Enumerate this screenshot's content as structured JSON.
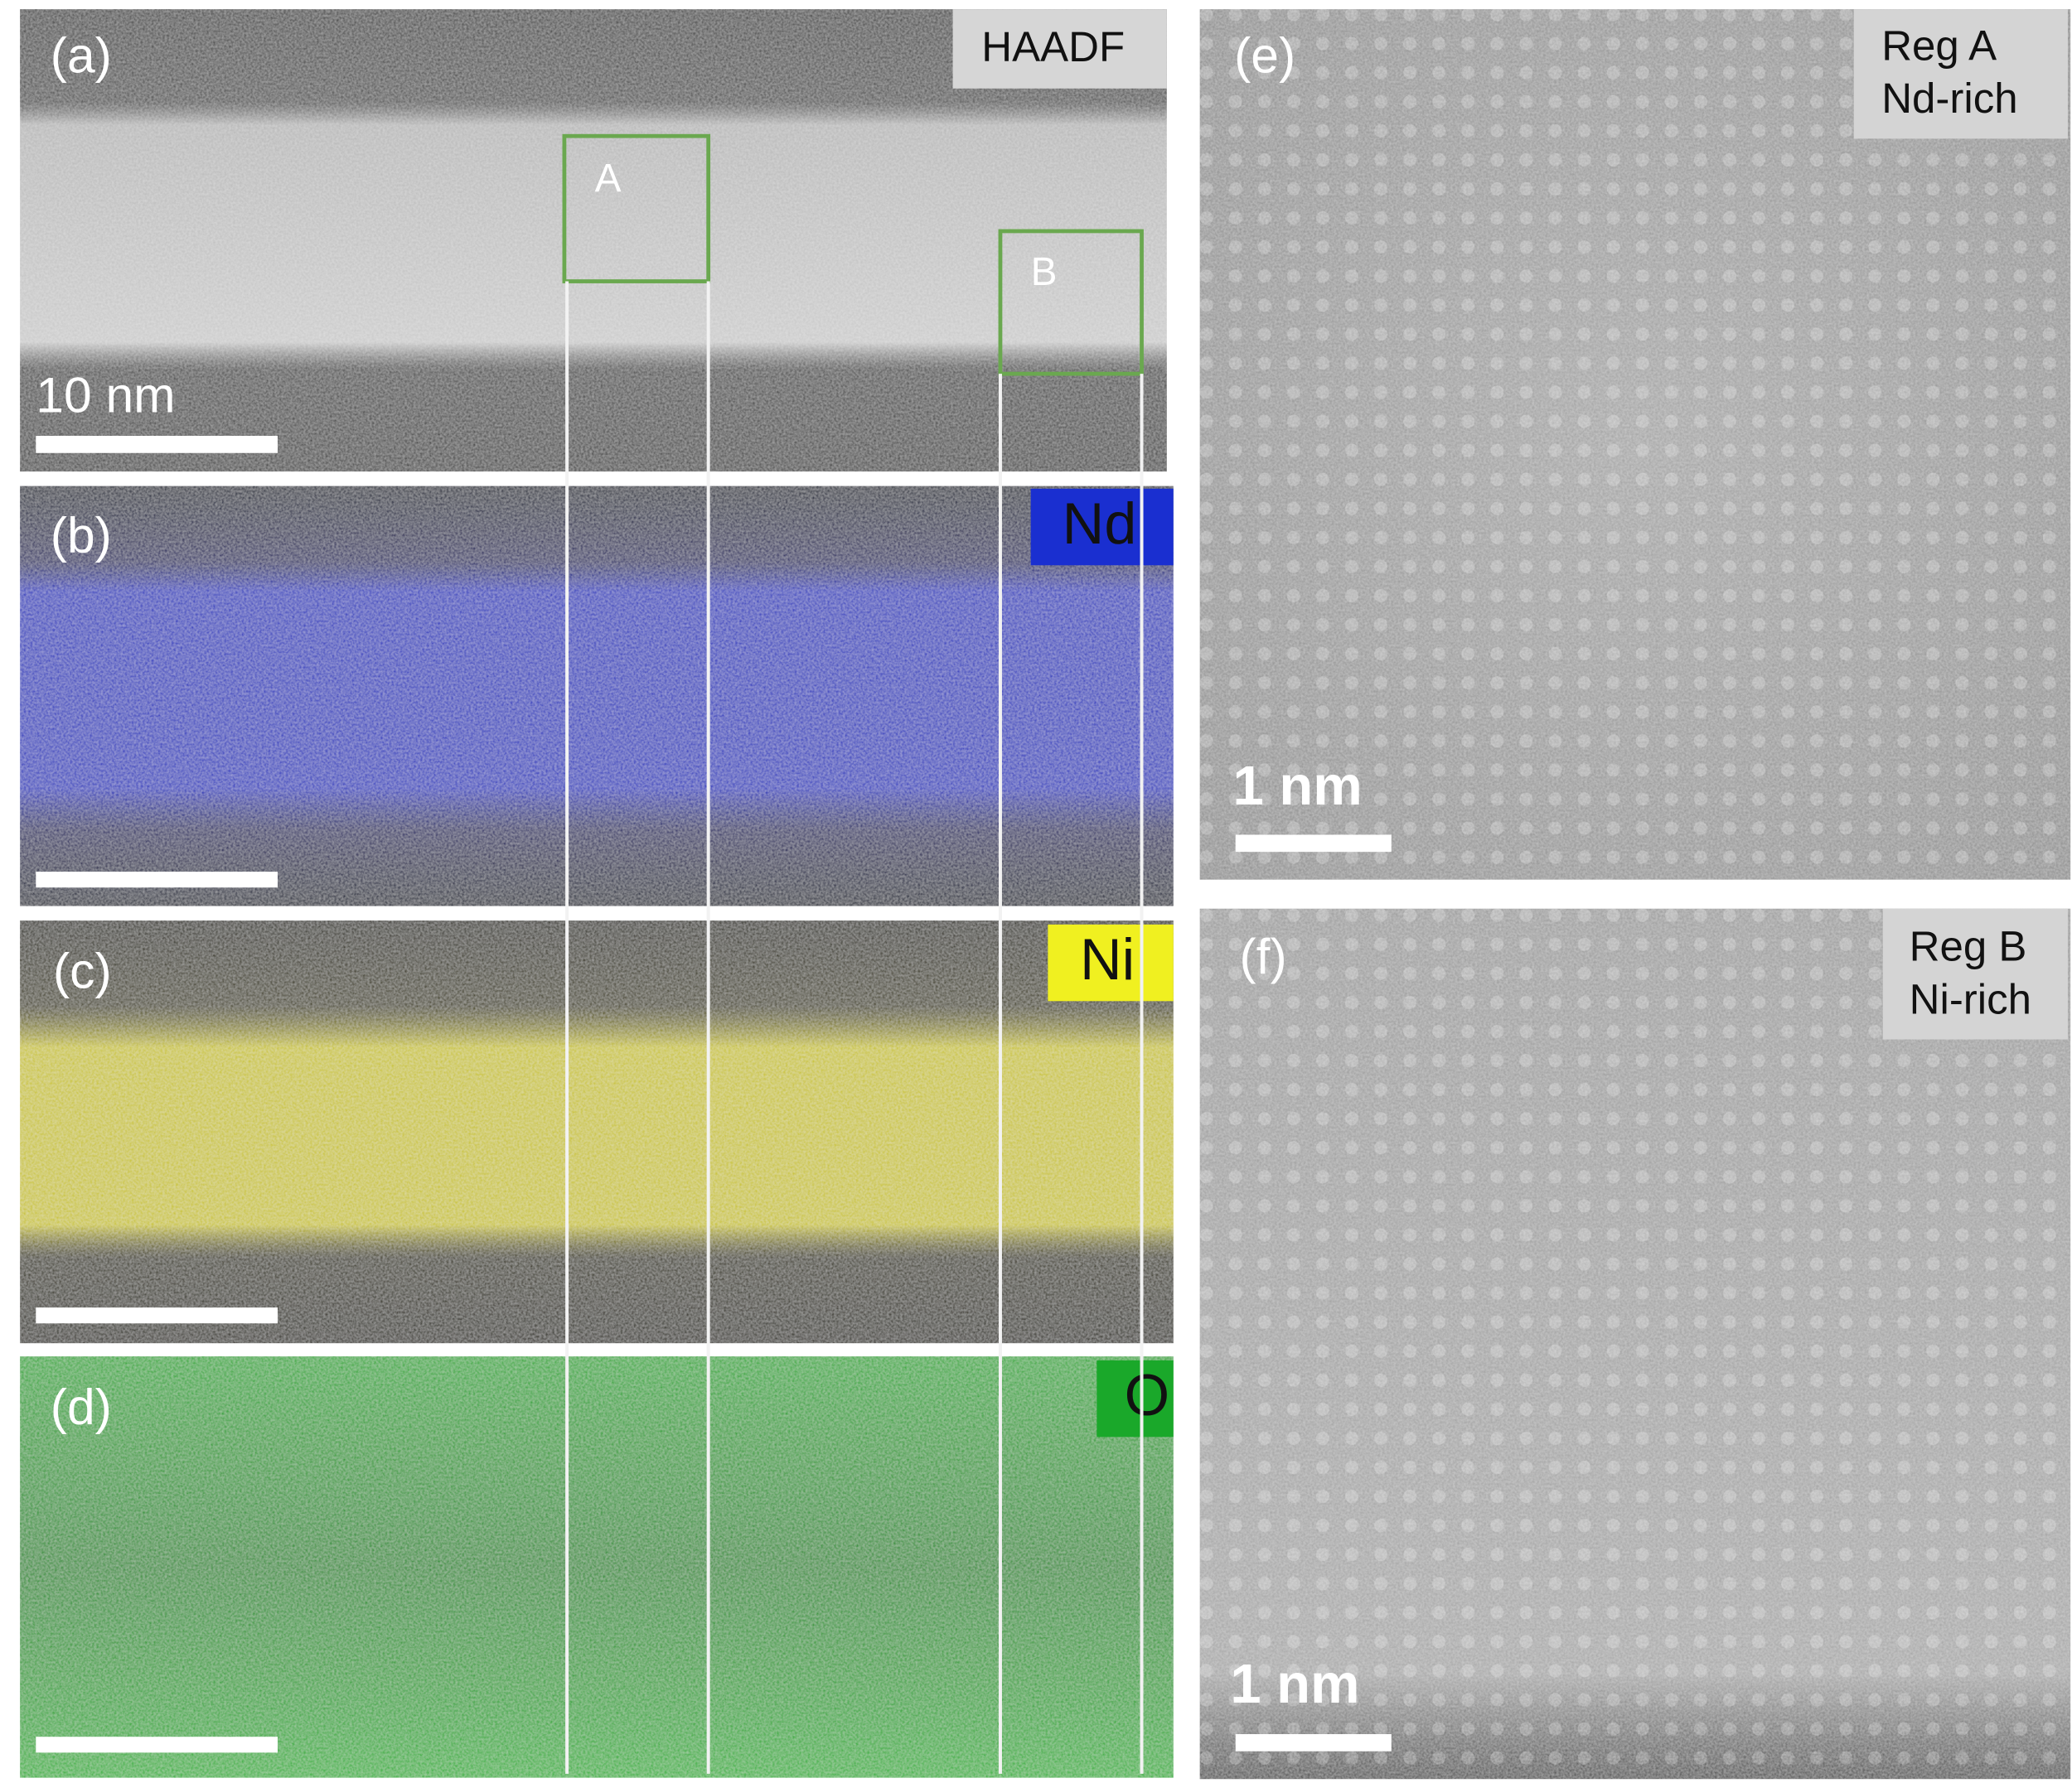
{
  "panels": [
    {
      "label": "(a)",
      "tag": "HAADF",
      "regions": [
        "A",
        "B"
      ],
      "scale_bar": "10 nm"
    },
    {
      "label": "(b)",
      "tag": "Nd"
    },
    {
      "label": "(c)",
      "tag": "Ni"
    },
    {
      "label": "(d)",
      "tag": "O"
    },
    {
      "label": "(e)",
      "tag": [
        "Reg A",
        "Nd-rich"
      ],
      "scale_bar": "1 nm"
    },
    {
      "label": "(f)",
      "tag": [
        "Reg B",
        "Ni-rich"
      ],
      "scale_bar": "1 nm"
    }
  ]
}
